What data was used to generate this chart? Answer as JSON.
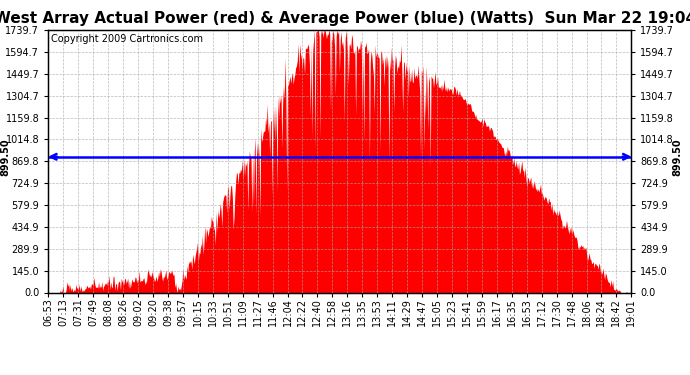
{
  "title": "West Array Actual Power (red) & Average Power (blue) (Watts)  Sun Mar 22 19:04",
  "copyright": "Copyright 2009 Cartronics.com",
  "average_power": 899.5,
  "y_max": 1739.7,
  "y_min": 0.0,
  "y_ticks": [
    0.0,
    145.0,
    289.9,
    434.9,
    579.9,
    724.9,
    869.8,
    1014.8,
    1159.8,
    1304.7,
    1449.7,
    1594.7,
    1739.7
  ],
  "x_labels": [
    "06:53",
    "07:13",
    "07:31",
    "07:49",
    "08:08",
    "08:26",
    "09:02",
    "09:20",
    "09:38",
    "09:57",
    "10:15",
    "10:33",
    "10:51",
    "11:09",
    "11:27",
    "11:46",
    "12:04",
    "12:22",
    "12:40",
    "12:58",
    "13:16",
    "13:35",
    "13:53",
    "14:11",
    "14:29",
    "14:47",
    "15:05",
    "15:23",
    "15:41",
    "15:59",
    "16:17",
    "16:35",
    "16:53",
    "17:12",
    "17:30",
    "17:48",
    "18:06",
    "18:24",
    "18:42",
    "19:01"
  ],
  "background_color": "#ffffff",
  "fill_color": "#ff0000",
  "line_color": "#0000ff",
  "grid_color": "#aaaaaa",
  "title_fontsize": 11,
  "copyright_fontsize": 7,
  "label_fontsize": 7,
  "tick_fontsize": 7
}
